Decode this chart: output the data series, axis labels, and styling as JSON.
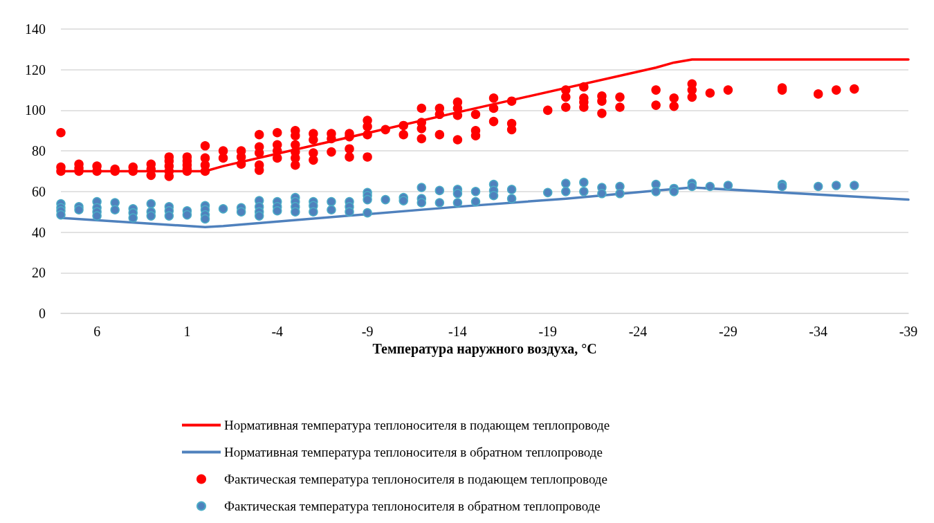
{
  "chart_data": {
    "type": "line",
    "xlabel": "Температура наружного воздуха, °C",
    "xlim": [
      8,
      -39
    ],
    "xticks": [
      6,
      1,
      -4,
      -9,
      -14,
      -19,
      -24,
      -29,
      -34,
      -39
    ],
    "ylim": [
      0,
      140
    ],
    "yticks": [
      0,
      20,
      40,
      60,
      80,
      100,
      120,
      140
    ],
    "grid": "y",
    "legend": "bottom",
    "series": [
      {
        "name": "Нормативная температура теплоносителя в подающем теплопроводе",
        "type": "line",
        "color": "#ff0000",
        "marker": "none",
        "line_style": "solid",
        "x": [
          8,
          0,
          -1,
          -14,
          -25,
          -26,
          -27,
          -39
        ],
        "values": [
          70,
          70,
          72.5,
          99,
          121,
          123.5,
          125,
          125
        ]
      },
      {
        "name": "Нормативная температура теплоносителя в обратном теплопроводе",
        "type": "line",
        "color": "#4f81bd",
        "marker": "none",
        "line_style": "solid",
        "x": [
          8,
          0,
          -1,
          -14,
          -20,
          -25,
          -27,
          -39
        ],
        "values": [
          47,
          42.5,
          43,
          52.5,
          56.5,
          60.5,
          62,
          56
        ]
      },
      {
        "name": "Фактическая температура теплоносителя в подающем теплопроводе",
        "type": "scatter",
        "color": "#ff0000",
        "marker": "circle",
        "x": [
          8,
          8,
          8,
          7,
          7,
          7,
          6,
          6,
          5,
          5,
          4,
          4,
          3,
          3,
          3,
          2,
          2,
          2,
          2,
          2,
          1,
          1,
          1,
          1,
          1,
          0,
          0,
          0,
          0,
          -1,
          -1,
          -2,
          -2,
          -2,
          -3,
          -3,
          -3,
          -3,
          -3,
          -4,
          -4,
          -4,
          -4,
          -5,
          -5,
          -5,
          -5,
          -5,
          -5,
          -6,
          -6,
          -6,
          -6,
          -7,
          -7,
          -7,
          -8,
          -8,
          -8,
          -8,
          -9,
          -9,
          -9,
          -9,
          -10,
          -11,
          -11,
          -12,
          -12,
          -12,
          -12,
          -13,
          -13,
          -13,
          -14,
          -14,
          -14,
          -14,
          -15,
          -15,
          -15,
          -16,
          -16,
          -16,
          -17,
          -17,
          -17,
          -19,
          -20,
          -20,
          -20,
          -21,
          -21,
          -21,
          -21,
          -22,
          -22,
          -22,
          -23,
          -23,
          -25,
          -25,
          -26,
          -26,
          -27,
          -27,
          -27,
          -28,
          -29,
          -32,
          -32,
          -34,
          -35,
          -36
        ],
        "values": [
          89,
          72,
          70,
          73.5,
          71.5,
          70,
          72.5,
          70,
          71,
          70,
          72,
          70,
          73.5,
          71,
          68,
          77,
          75,
          72.5,
          70,
          67.5,
          77,
          75,
          73,
          71,
          70,
          82.5,
          76.5,
          73,
          70,
          80,
          76.5,
          80,
          77,
          73.5,
          88,
          82,
          79,
          73,
          70.5,
          89,
          83,
          80,
          76.5,
          90,
          87.5,
          83,
          79.5,
          76.5,
          73,
          88.5,
          85.5,
          79,
          75.5,
          88.5,
          86,
          79.5,
          88.5,
          87,
          81,
          77,
          95,
          92,
          88,
          77,
          90.5,
          92.5,
          88,
          101,
          94,
          91,
          86,
          101,
          98,
          88,
          104,
          101,
          97.5,
          85.5,
          98,
          90,
          87.5,
          106,
          101,
          94.5,
          104.5,
          93.5,
          90.5,
          100,
          110,
          106.5,
          101.5,
          111.5,
          106,
          104,
          101.5,
          107,
          104.5,
          98.5,
          106.5,
          101.5,
          110,
          102.5,
          106,
          102,
          113,
          110,
          106.5,
          108.5,
          110,
          111,
          110,
          108,
          110,
          110.5
        ]
      },
      {
        "name": "Фактическая температура теплоносителя в обратном теплопроводе",
        "type": "scatter",
        "color": "#4f81bd",
        "marker": "circle",
        "x": [
          8,
          8,
          8,
          8,
          7,
          7,
          6,
          6,
          6,
          6,
          5,
          5,
          4,
          4,
          4,
          3,
          3,
          3,
          2,
          2,
          2,
          1,
          1,
          0,
          0,
          0,
          0,
          -1,
          -2,
          -2,
          -3,
          -3,
          -3,
          -3,
          -4,
          -4,
          -4,
          -5,
          -5,
          -5,
          -5,
          -6,
          -6,
          -6,
          -7,
          -7,
          -8,
          -8,
          -8,
          -9,
          -9,
          -9,
          -9,
          -10,
          -11,
          -11,
          -12,
          -12,
          -12,
          -13,
          -13,
          -14,
          -14,
          -14,
          -15,
          -15,
          -16,
          -16,
          -16,
          -17,
          -17,
          -19,
          -20,
          -20,
          -21,
          -21,
          -22,
          -22,
          -23,
          -23,
          -25,
          -25,
          -26,
          -26,
          -27,
          -27,
          -28,
          -29,
          -32,
          -32,
          -34,
          -35,
          -36
        ],
        "values": [
          54,
          52,
          50.5,
          48.5,
          52.5,
          51,
          55,
          52,
          50,
          48,
          54.5,
          51,
          51.5,
          49.5,
          47,
          54,
          50,
          48,
          52.5,
          50.5,
          48,
          50.5,
          48.5,
          53,
          51,
          48.5,
          46.5,
          51.5,
          52,
          50,
          55.5,
          52.5,
          50,
          48,
          55,
          52.5,
          50.5,
          57,
          55,
          52.5,
          50,
          55,
          53,
          50,
          55,
          51,
          55,
          52.5,
          50,
          59.5,
          58,
          56,
          49.5,
          56,
          57,
          55.5,
          62,
          56.5,
          54.5,
          60.5,
          54.5,
          61,
          59,
          54.5,
          60,
          55,
          63.5,
          60.5,
          58,
          61,
          56.5,
          59.5,
          64,
          60,
          64.5,
          60,
          62,
          59,
          62.5,
          59,
          63.5,
          60,
          61.5,
          60,
          64,
          62.5,
          62.5,
          63,
          63.5,
          62.5,
          62.5,
          63,
          63
        ]
      }
    ]
  }
}
